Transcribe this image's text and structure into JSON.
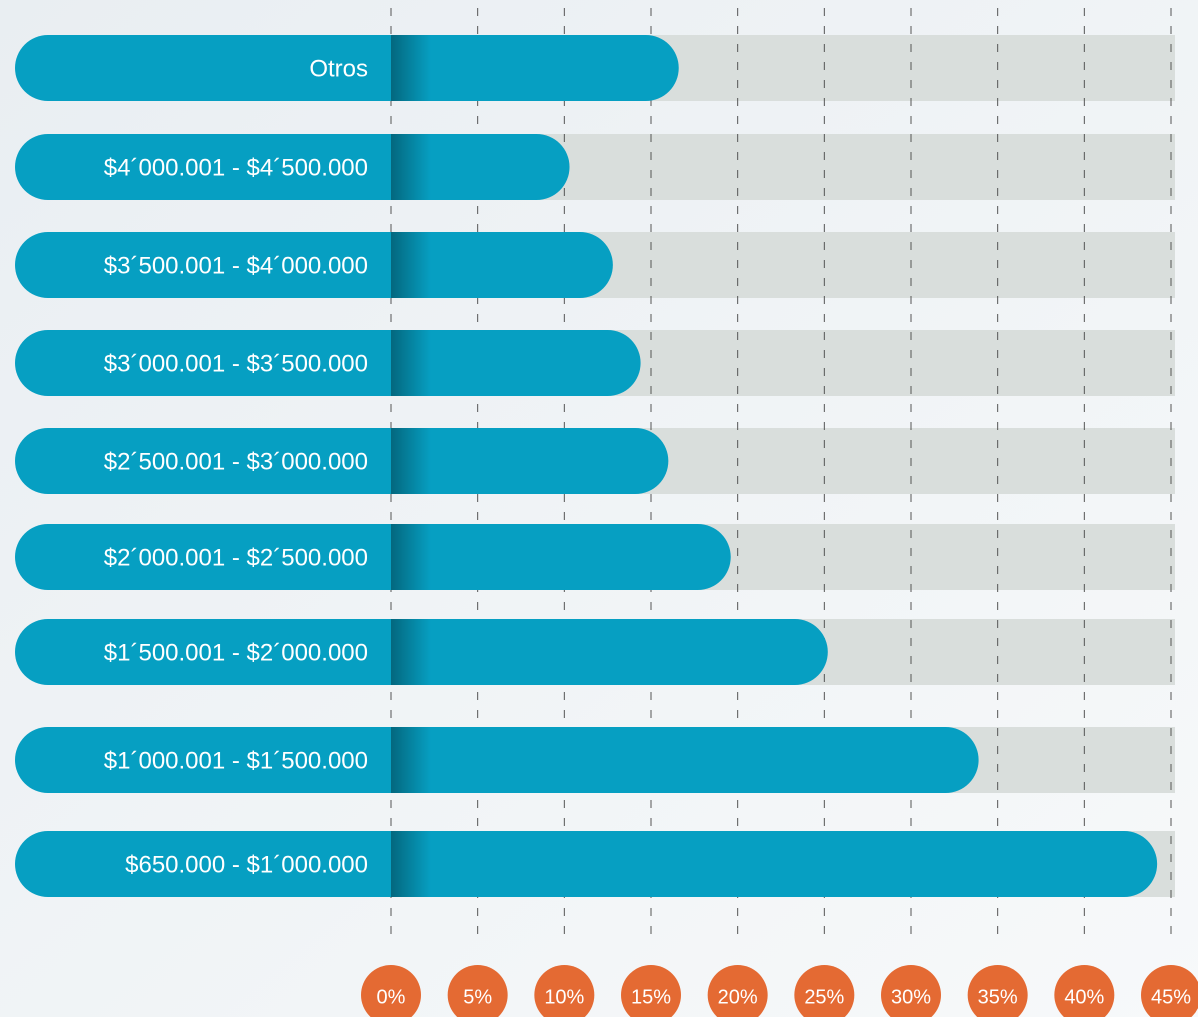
{
  "chart_data": {
    "type": "bar",
    "orientation": "horizontal",
    "categories": [
      "Otros",
      "$4´000.001 - $4´500.000",
      "$3´500.001 - $4´000.000",
      "$3´000.001 - $3´500.000",
      "$2´500.001 - $3´000.000",
      "$2´000.001 - $2´500.000",
      "$1´500.001 - $2´000.000",
      "$1´000.001 - $1´500.000",
      "$650.000 - $1´000.000"
    ],
    "values": [
      16.6,
      10.3,
      12.8,
      14.4,
      16.0,
      19.6,
      25.2,
      33.9,
      44.2
    ],
    "color": "#069fc2",
    "track_color": "#d9dedc",
    "tick_color": "#e46a33",
    "xlim": [
      0,
      45
    ],
    "xticks": [
      {
        "value": 0,
        "label": "0%"
      },
      {
        "value": 5,
        "label": "5%"
      },
      {
        "value": 10,
        "label": "10%"
      },
      {
        "value": 15,
        "label": "15%"
      },
      {
        "value": 20,
        "label": "20%"
      },
      {
        "value": 25,
        "label": "25%"
      },
      {
        "value": 30,
        "label": "30%"
      },
      {
        "value": 35,
        "label": "35%"
      },
      {
        "value": 40,
        "label": "40%"
      },
      {
        "value": 45,
        "label": "45%"
      }
    ],
    "grid": true
  }
}
